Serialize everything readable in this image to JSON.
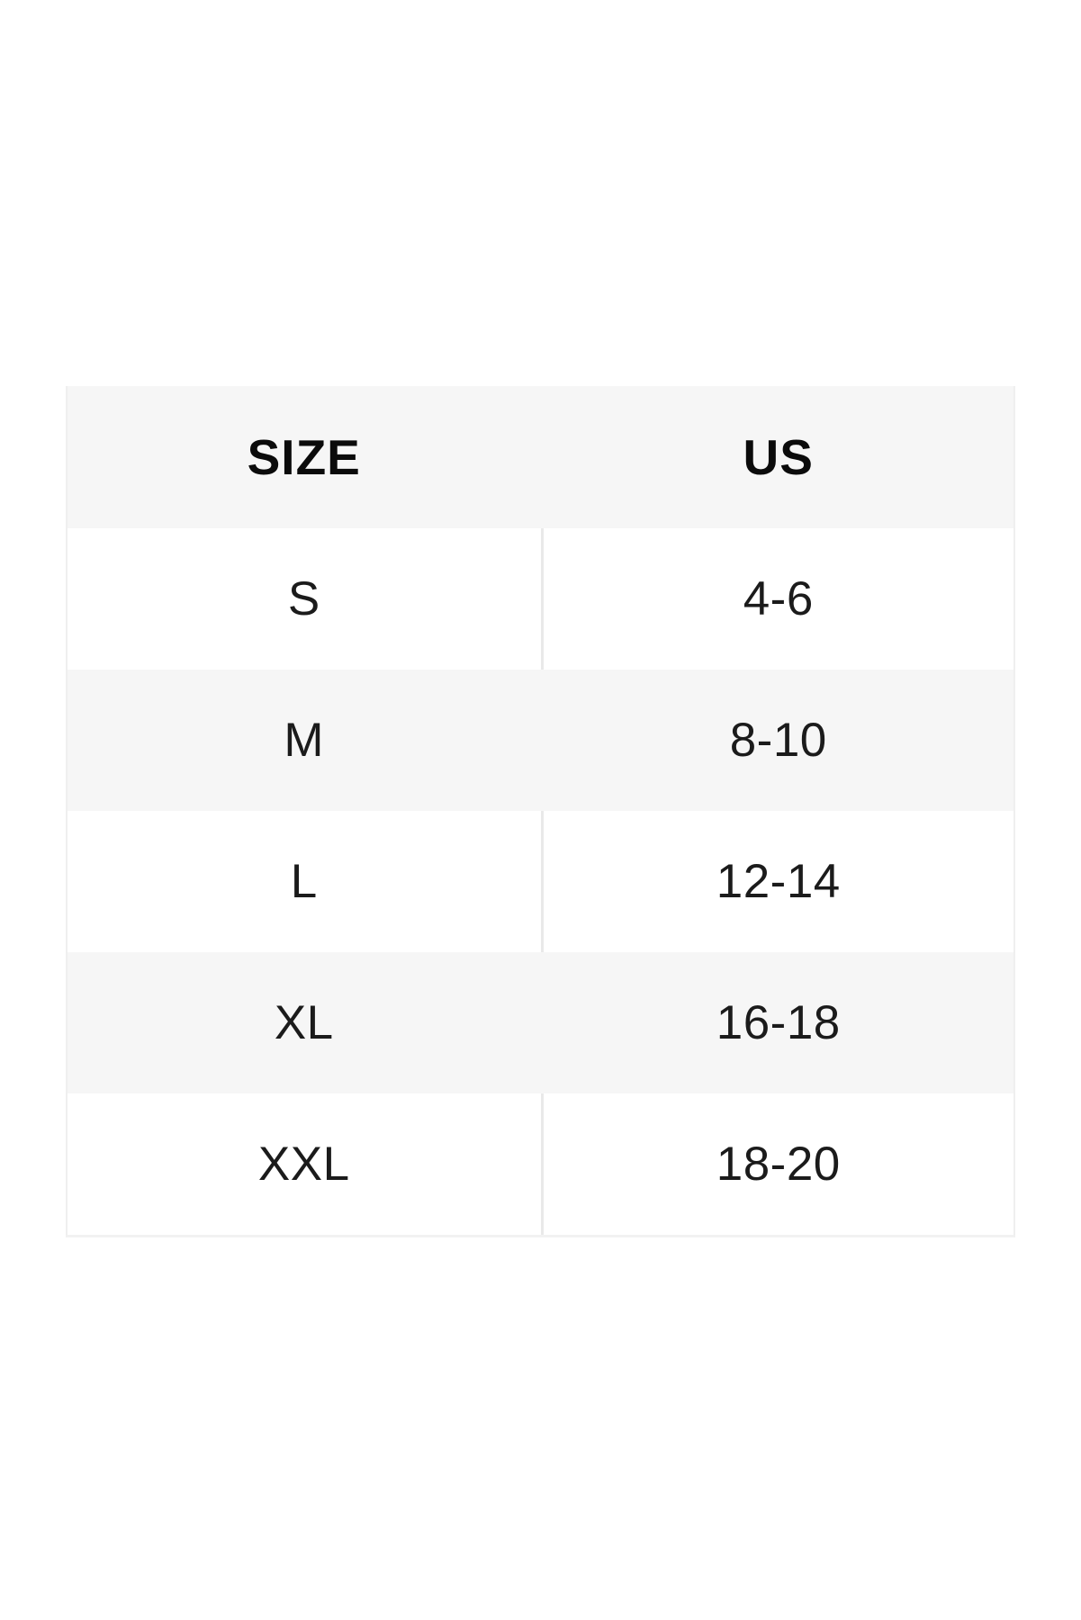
{
  "table": {
    "columns": [
      {
        "key": "size",
        "label": "SIZE"
      },
      {
        "key": "us",
        "label": "US"
      }
    ],
    "rows": [
      {
        "size": "S",
        "us": "4-6"
      },
      {
        "size": "M",
        "us": "8-10"
      },
      {
        "size": "L",
        "us": "12-14"
      },
      {
        "size": "XL",
        "us": "16-18"
      },
      {
        "size": "XXL",
        "us": "18-20"
      }
    ]
  },
  "colors": {
    "page_background": "#ffffff",
    "stripe": "#f6f6f6",
    "divider": "#e9e9e9",
    "border": "#efefef",
    "bottom_border": "#f2f2f2",
    "text": "#1b1b1b",
    "header_text": "#0b0b0b"
  }
}
